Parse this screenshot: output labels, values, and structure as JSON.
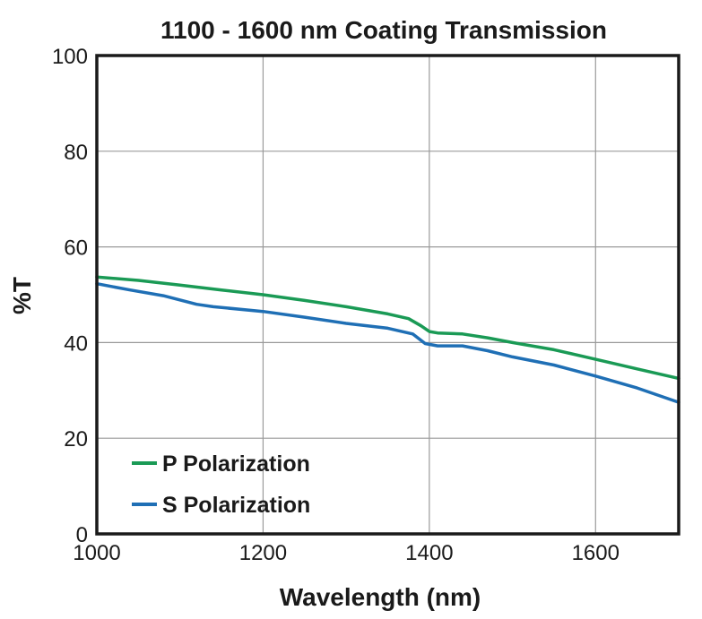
{
  "chart_data": {
    "type": "line",
    "title": "1100 - 1600 nm Coating Transmission",
    "xlabel": "Wavelength (nm)",
    "ylabel": "%T",
    "xlim": [
      1000,
      1700
    ],
    "ylim": [
      0,
      100
    ],
    "x_ticks": [
      1000,
      1200,
      1400,
      1600
    ],
    "y_ticks": [
      0,
      20,
      40,
      60,
      80,
      100
    ],
    "x_tick_labels": [
      "1000",
      "1200",
      "1400",
      "1600"
    ],
    "y_tick_labels": [
      "0",
      "20",
      "40",
      "60",
      "80",
      "100"
    ],
    "grid": true,
    "legend_position": "bottom-left",
    "series": [
      {
        "name": "P Polarization",
        "color": "#1a9a55",
        "points": [
          [
            1000,
            53.7
          ],
          [
            1050,
            53.0
          ],
          [
            1100,
            52.0
          ],
          [
            1150,
            51.0
          ],
          [
            1200,
            50.0
          ],
          [
            1250,
            48.8
          ],
          [
            1300,
            47.5
          ],
          [
            1350,
            46.0
          ],
          [
            1375,
            45.0
          ],
          [
            1390,
            43.5
          ],
          [
            1400,
            42.3
          ],
          [
            1410,
            42.0
          ],
          [
            1440,
            41.8
          ],
          [
            1470,
            41.0
          ],
          [
            1500,
            40.0
          ],
          [
            1550,
            38.5
          ],
          [
            1600,
            36.5
          ],
          [
            1650,
            34.5
          ],
          [
            1700,
            32.5
          ]
        ]
      },
      {
        "name": "S Polarization",
        "color": "#1f6fb5",
        "points": [
          [
            1000,
            52.3
          ],
          [
            1040,
            51.0
          ],
          [
            1080,
            49.8
          ],
          [
            1120,
            48.0
          ],
          [
            1140,
            47.5
          ],
          [
            1200,
            46.5
          ],
          [
            1250,
            45.3
          ],
          [
            1300,
            44.0
          ],
          [
            1350,
            43.0
          ],
          [
            1380,
            41.8
          ],
          [
            1395,
            39.8
          ],
          [
            1410,
            39.3
          ],
          [
            1440,
            39.3
          ],
          [
            1470,
            38.3
          ],
          [
            1500,
            37.0
          ],
          [
            1550,
            35.3
          ],
          [
            1600,
            33.0
          ],
          [
            1650,
            30.5
          ],
          [
            1700,
            27.5
          ]
        ]
      }
    ]
  }
}
